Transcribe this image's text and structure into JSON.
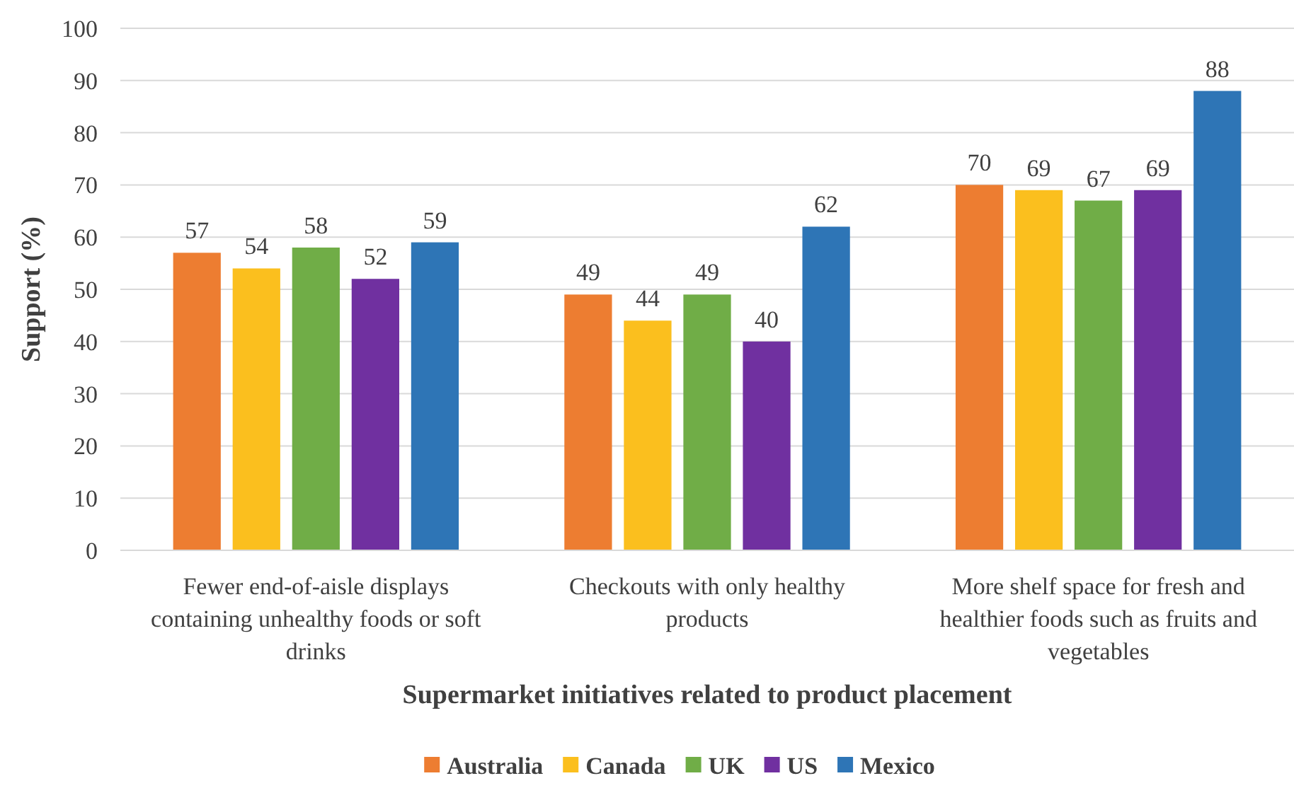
{
  "chart_data": {
    "type": "bar",
    "xlabel": "Supermarket initiatives related to product placement",
    "ylabel": "Support (%)",
    "categories": [
      "Fewer end-of-aisle displays containing unhealthy foods or soft drinks",
      "Checkouts with only healthy products",
      "More shelf space for fresh and healthier foods such as fruits and vegetables"
    ],
    "series": [
      {
        "name": "Australia",
        "color": "#ed7d31",
        "values": [
          57,
          49,
          70
        ]
      },
      {
        "name": "Canada",
        "color": "#fbbf1e",
        "values": [
          54,
          44,
          69
        ]
      },
      {
        "name": "UK",
        "color": "#70ad47",
        "values": [
          58,
          49,
          67
        ]
      },
      {
        "name": "US",
        "color": "#7030a0",
        "values": [
          52,
          40,
          69
        ]
      },
      {
        "name": "Mexico",
        "color": "#2e75b6",
        "values": [
          59,
          62,
          88
        ]
      }
    ],
    "ylim": [
      0,
      100
    ],
    "yticks": [
      0,
      10,
      20,
      30,
      40,
      50,
      60,
      70,
      80,
      90,
      100
    ],
    "grid": "y",
    "legend": "bottom",
    "data_labels": true
  }
}
